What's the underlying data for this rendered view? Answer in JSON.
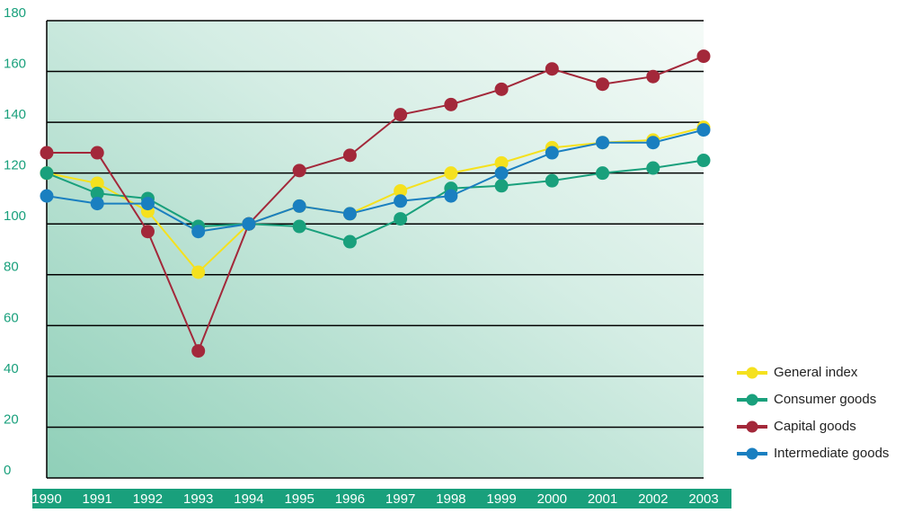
{
  "chart_data": {
    "type": "line",
    "categories": [
      "1990",
      "1991",
      "1992",
      "1993",
      "1994",
      "1995",
      "1996",
      "1997",
      "1998",
      "1999",
      "2000",
      "2001",
      "2002",
      "2003"
    ],
    "series": [
      {
        "name": "General index",
        "color": "#f5e11e",
        "values": [
          120,
          116,
          105,
          81,
          100,
          107,
          104,
          113,
          120,
          124,
          130,
          132,
          133,
          138
        ]
      },
      {
        "name": "Consumer goods",
        "color": "#19a07c",
        "values": [
          120,
          112,
          110,
          99,
          100,
          99,
          93,
          102,
          114,
          115,
          117,
          120,
          122,
          125
        ]
      },
      {
        "name": "Capital goods",
        "color": "#a3283a",
        "values": [
          128,
          128,
          97,
          50,
          100,
          121,
          127,
          143,
          147,
          153,
          161,
          155,
          158,
          166
        ]
      },
      {
        "name": "Intermediate goods",
        "color": "#1a7fc0",
        "values": [
          111,
          108,
          108,
          97,
          100,
          107,
          104,
          109,
          111,
          120,
          128,
          132,
          132,
          137
        ]
      }
    ],
    "ylim": [
      0,
      180
    ],
    "yticks": [
      0,
      20,
      40,
      60,
      80,
      100,
      120,
      140,
      160,
      180
    ],
    "grid": true,
    "legend": "right"
  }
}
